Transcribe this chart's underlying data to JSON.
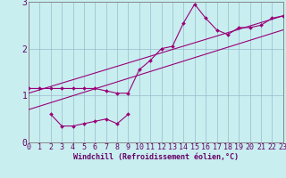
{
  "bg_color": "#c8eef0",
  "line_color": "#990077",
  "grid_color": "#99bbcc",
  "axis_color": "#666666",
  "spine_color": "#888888",
  "text_color": "#660066",
  "line1_x": [
    0,
    1,
    2,
    3,
    4,
    5,
    6,
    7,
    8,
    9,
    10,
    11,
    12,
    13,
    14,
    15,
    16,
    17,
    18,
    19,
    20,
    21,
    22,
    23
  ],
  "line1_y": [
    1.15,
    1.15,
    1.15,
    1.15,
    1.15,
    1.15,
    1.15,
    1.1,
    1.05,
    1.05,
    1.55,
    1.75,
    2.0,
    2.05,
    2.55,
    2.95,
    2.65,
    2.4,
    2.3,
    2.45,
    2.45,
    2.5,
    2.65,
    2.7
  ],
  "line2_x": [
    2,
    3,
    4,
    5,
    6,
    7,
    8,
    9
  ],
  "line2_y": [
    0.6,
    0.35,
    0.35,
    0.4,
    0.45,
    0.5,
    0.4,
    0.6
  ],
  "trend1_x": [
    0,
    23
  ],
  "trend1_y": [
    1.05,
    2.7
  ],
  "trend2_x": [
    0,
    23
  ],
  "trend2_y": [
    0.7,
    2.4
  ],
  "xlim": [
    0,
    23
  ],
  "ylim": [
    0,
    3.0
  ],
  "yticks": [
    0,
    1,
    2,
    3
  ],
  "xtick_labels": [
    "0",
    "1",
    "2",
    "3",
    "4",
    "5",
    "6",
    "7",
    "8",
    "9",
    "10",
    "11",
    "12",
    "13",
    "14",
    "15",
    "16",
    "17",
    "18",
    "19",
    "20",
    "21",
    "22",
    "23"
  ],
  "xlabel": "Windchill (Refroidissement éolien,°C)",
  "xlabel_fontsize": 6.0,
  "tick_fontsize": 6.0,
  "ytick_fontsize": 7.0
}
